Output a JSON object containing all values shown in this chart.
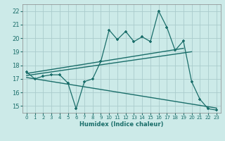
{
  "title": "",
  "xlabel": "Humidex (Indice chaleur)",
  "bg_color": "#cceae8",
  "grid_color": "#aacccc",
  "line_color": "#1a6e6a",
  "xlim": [
    -0.5,
    23.5
  ],
  "ylim": [
    14.5,
    22.5
  ],
  "xticks": [
    0,
    1,
    2,
    3,
    4,
    5,
    6,
    7,
    8,
    9,
    10,
    11,
    12,
    13,
    14,
    15,
    16,
    17,
    18,
    19,
    20,
    21,
    22,
    23
  ],
  "yticks": [
    15,
    16,
    17,
    18,
    19,
    20,
    21,
    22
  ],
  "main_line_x": [
    0,
    1,
    2,
    3,
    4,
    5,
    6,
    7,
    8,
    9,
    10,
    11,
    12,
    13,
    14,
    15,
    16,
    17,
    18,
    19,
    20,
    21,
    22,
    23
  ],
  "main_line_y": [
    17.5,
    17.0,
    17.2,
    17.3,
    17.3,
    16.7,
    14.8,
    16.8,
    17.0,
    18.3,
    20.6,
    19.9,
    20.5,
    19.75,
    20.1,
    19.75,
    22.0,
    20.8,
    19.1,
    19.8,
    16.8,
    15.5,
    14.8,
    14.7
  ],
  "trend1_x": [
    0,
    19
  ],
  "trend1_y": [
    17.4,
    19.25
  ],
  "trend2_x": [
    0,
    20
  ],
  "trend2_y": [
    17.25,
    19.0
  ],
  "trend3_x": [
    0,
    23
  ],
  "trend3_y": [
    17.1,
    14.85
  ]
}
